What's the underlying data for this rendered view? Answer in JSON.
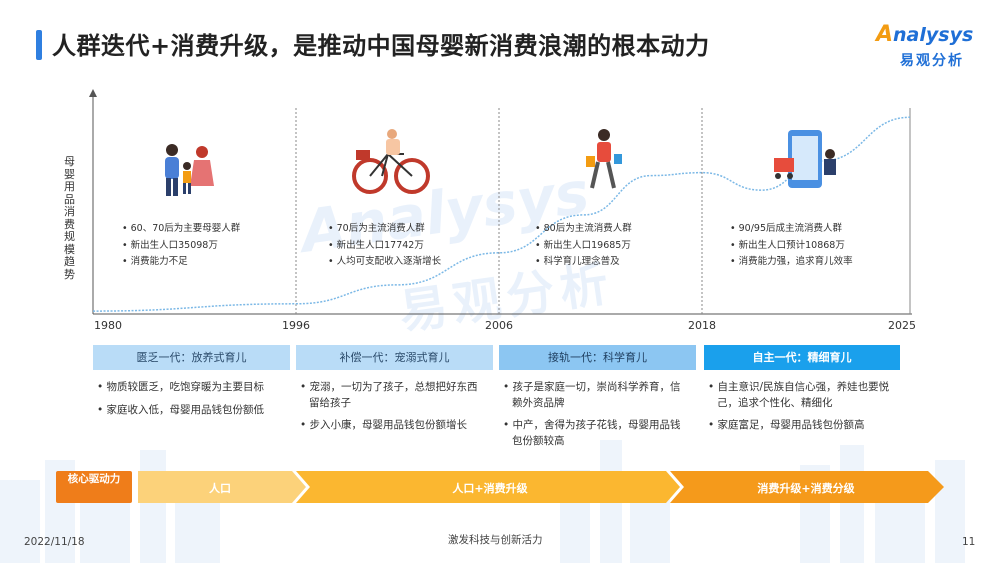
{
  "title": "人群迭代+消费升级，是推动中国母婴新消费浪潮的根本动力",
  "logo": {
    "brand": "nalysys",
    "brand_initial": "A",
    "sub": "易观分析"
  },
  "watermark": {
    "brand": "Analysys",
    "sub": "易观分析"
  },
  "chart_data": {
    "type": "line",
    "ylabel": "母婴用品消费规模趋势",
    "x_ticks": [
      "1980",
      "1996",
      "2006",
      "2018",
      "2025"
    ],
    "trend": {
      "x": [
        1980,
        1996,
        2001,
        2006,
        2011,
        2015,
        2018,
        2020,
        2022,
        2025
      ],
      "y": [
        2,
        7,
        20,
        42,
        68,
        95,
        97,
        85,
        105,
        135
      ]
    },
    "ylim": [
      0,
      140
    ],
    "grid": false
  },
  "eras": [
    {
      "bullets": [
        "60、70后为主要母婴人群",
        "新出生人口35098万",
        "消费能力不足"
      ],
      "generation": "匮乏一代：放养式育儿",
      "descriptions": [
        "物质较匮乏，吃饱穿暖为主要目标",
        "家庭收入低，母婴用品钱包份额低"
      ]
    },
    {
      "bullets": [
        "70后为主流消费人群",
        "新出生人口17742万",
        "人均可支配收入逐渐增长"
      ],
      "generation": "补偿一代：宠溺式育儿",
      "descriptions": [
        "宠溺，一切为了孩子，总想把好东西留给孩子",
        "步入小康，母婴用品钱包份额增长"
      ]
    },
    {
      "bullets": [
        "80后为主流消费人群",
        "新出生人口19685万",
        "科学育儿理念普及"
      ],
      "generation": "接轨一代：科学育儿",
      "descriptions": [
        "孩子是家庭一切，崇尚科学养育，信赖外资品牌",
        "中产，舍得为孩子花钱，母婴用品钱包份额较高"
      ]
    },
    {
      "bullets": [
        "90/95后成主流消费人群",
        "新出生人口预计10868万",
        "消费能力强，追求育儿效率"
      ],
      "generation": "自主一代：精细育儿",
      "descriptions": [
        "自主意识/民族自信心强，养娃也要悦己，追求个性化、精细化",
        "家庭富足，母婴用品钱包份额高"
      ]
    }
  ],
  "drivers": {
    "label": "核心驱动力",
    "stages": [
      "人口",
      "人口+消费升级",
      "消费升级+消费分级"
    ]
  },
  "colors": {
    "accent": "#2f7fe0",
    "gen_light": "#b9dcf7",
    "gen_mid": "#8cc6f2",
    "gen_dark": "#1aa0ec",
    "orange_light": "#fcd27a",
    "orange_mid": "#fbb730",
    "orange_dark": "#f59a1b",
    "core": "#ef7d1a"
  },
  "footer": {
    "date": "2022/11/18",
    "center": "激发科技与创新活力",
    "page": "11"
  }
}
